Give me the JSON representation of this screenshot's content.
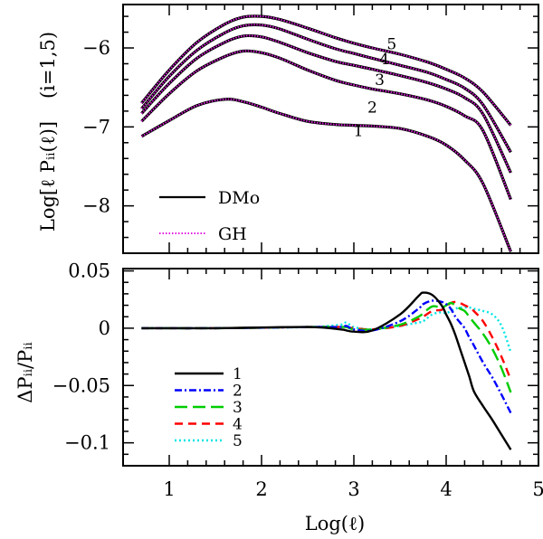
{
  "chart_data": [
    {
      "panel": "top",
      "type": "line",
      "ylabel": "Log[ℓ Pᵢᵢ(ℓ)]",
      "panel_annotation": "(i=1,5)",
      "xlim": [
        0.5,
        5.0
      ],
      "ylim": [
        -8.6,
        -5.45
      ],
      "yticks": [
        -8,
        -7,
        -6
      ],
      "ytick_labels": [
        "−8",
        "−7",
        "−6"
      ],
      "x": [
        0.7,
        1.0,
        1.3,
        1.6,
        1.8,
        2.0,
        2.2,
        2.5,
        2.8,
        3.0,
        3.2,
        3.5,
        3.8,
        4.0,
        4.2,
        4.4,
        4.7
      ],
      "series": [
        {
          "name": "1",
          "values": [
            -7.12,
            -6.92,
            -6.73,
            -6.65,
            -6.68,
            -6.75,
            -6.83,
            -6.93,
            -6.97,
            -6.98,
            -6.99,
            -7.02,
            -7.12,
            -7.23,
            -7.42,
            -7.72,
            -8.58
          ]
        },
        {
          "name": "2",
          "values": [
            -6.93,
            -6.58,
            -6.29,
            -6.11,
            -6.04,
            -6.06,
            -6.13,
            -6.28,
            -6.41,
            -6.47,
            -6.52,
            -6.58,
            -6.66,
            -6.74,
            -6.86,
            -7.05,
            -7.92
          ]
        },
        {
          "name": "3",
          "values": [
            -6.83,
            -6.45,
            -6.13,
            -5.93,
            -5.85,
            -5.86,
            -5.93,
            -6.06,
            -6.17,
            -6.22,
            -6.27,
            -6.35,
            -6.44,
            -6.52,
            -6.63,
            -6.84,
            -7.58
          ]
        },
        {
          "name": "4",
          "values": [
            -6.77,
            -6.36,
            -6.03,
            -5.81,
            -5.72,
            -5.71,
            -5.76,
            -5.89,
            -6.01,
            -6.07,
            -6.13,
            -6.22,
            -6.31,
            -6.4,
            -6.51,
            -6.72,
            -7.32
          ]
        },
        {
          "name": "5",
          "values": [
            -6.7,
            -6.28,
            -5.93,
            -5.7,
            -5.61,
            -5.6,
            -5.64,
            -5.75,
            -5.87,
            -5.94,
            -6.0,
            -6.08,
            -6.18,
            -6.27,
            -6.38,
            -6.56,
            -6.98
          ]
        }
      ],
      "curve_labels": [
        {
          "text": "1",
          "x": 3.05,
          "y": -7.05
        },
        {
          "text": "2",
          "x": 3.2,
          "y": -6.75
        },
        {
          "text": "3",
          "x": 3.28,
          "y": -6.4
        },
        {
          "text": "4",
          "x": 3.33,
          "y": -6.14
        },
        {
          "text": "5",
          "x": 3.41,
          "y": -5.95
        }
      ],
      "legend": [
        {
          "label": "DMo",
          "color": "#000000",
          "style": "solid"
        },
        {
          "label": "GH",
          "color": "#e11be1",
          "style": "dotted"
        }
      ],
      "colors": {
        "DMo": "#000000",
        "GH": "#e11be1"
      }
    },
    {
      "panel": "bottom",
      "type": "line",
      "xlabel": "Log(ℓ)",
      "ylabel": "ΔPᵢᵢ/Pᵢᵢ",
      "xlim": [
        0.5,
        5.0
      ],
      "ylim": [
        -0.12,
        0.052
      ],
      "xticks": [
        1,
        2,
        3,
        4,
        5
      ],
      "xtick_labels": [
        "1",
        "2",
        "3",
        "4",
        "5"
      ],
      "yticks": [
        0.05,
        0,
        -0.05,
        -0.1
      ],
      "ytick_labels": [
        "0.05",
        "0",
        "−0.05",
        "−0.1"
      ],
      "x": [
        0.7,
        1.5,
        2.5,
        2.85,
        2.92,
        3.0,
        3.2,
        3.5,
        3.7,
        3.75,
        3.85,
        3.95,
        4.0,
        4.05,
        4.1,
        4.15,
        4.2,
        4.25,
        4.3,
        4.4,
        4.5,
        4.6,
        4.7
      ],
      "series": [
        {
          "name": "1",
          "color": "#000000",
          "dash": "",
          "values": [
            0,
            0,
            0.001,
            -0.001,
            -0.002,
            -0.003,
            -0.002,
            0.012,
            0.028,
            0.031,
            0.029,
            0.02,
            0.012,
            0.004,
            -0.006,
            -0.018,
            -0.03,
            -0.042,
            -0.055,
            -0.068,
            -0.08,
            -0.093,
            -0.106
          ]
        },
        {
          "name": "2",
          "color": "#0000ff",
          "dash": "8,3,2,3",
          "values": [
            0,
            0,
            0.001,
            0.001,
            0.002,
            -0.001,
            -0.002,
            0.006,
            0.017,
            0.021,
            0.024,
            0.023,
            0.021,
            0.017,
            0.01,
            0.005,
            0.0,
            -0.008,
            -0.015,
            -0.03,
            -0.043,
            -0.058,
            -0.074
          ]
        },
        {
          "name": "3",
          "color": "#00cc00",
          "dash": "14,6",
          "values": [
            0,
            0,
            0.001,
            0.001,
            0.001,
            -0.001,
            -0.001,
            0.003,
            0.01,
            0.013,
            0.019,
            0.018,
            0.02,
            0.022,
            0.02,
            0.017,
            0.015,
            0.01,
            0.005,
            -0.005,
            -0.018,
            -0.035,
            -0.056
          ]
        },
        {
          "name": "4",
          "color": "#ff0000",
          "dash": "9,6",
          "values": [
            0,
            0,
            0.001,
            0.001,
            0.001,
            0.0,
            -0.001,
            0.002,
            0.008,
            0.01,
            0.015,
            0.016,
            0.019,
            0.022,
            0.023,
            0.022,
            0.02,
            0.018,
            0.015,
            0.006,
            -0.008,
            -0.025,
            -0.045
          ]
        },
        {
          "name": "5",
          "color": "#00e5e5",
          "dash": "2,3",
          "values": [
            0,
            0,
            0.001,
            0.003,
            0.005,
            0.001,
            -0.001,
            0.002,
            0.005,
            0.006,
            0.012,
            0.014,
            0.013,
            0.015,
            0.017,
            0.018,
            0.018,
            0.018,
            0.017,
            0.015,
            0.012,
            0.002,
            -0.021
          ]
        }
      ],
      "legend": [
        {
          "label": "1",
          "color": "#000000",
          "dash": ""
        },
        {
          "label": "2",
          "color": "#0000ff",
          "dash": "8,3,2,3"
        },
        {
          "label": "3",
          "color": "#00cc00",
          "dash": "14,6"
        },
        {
          "label": "4",
          "color": "#ff0000",
          "dash": "9,6"
        },
        {
          "label": "5",
          "color": "#00e5e5",
          "dash": "2,3"
        }
      ]
    }
  ]
}
